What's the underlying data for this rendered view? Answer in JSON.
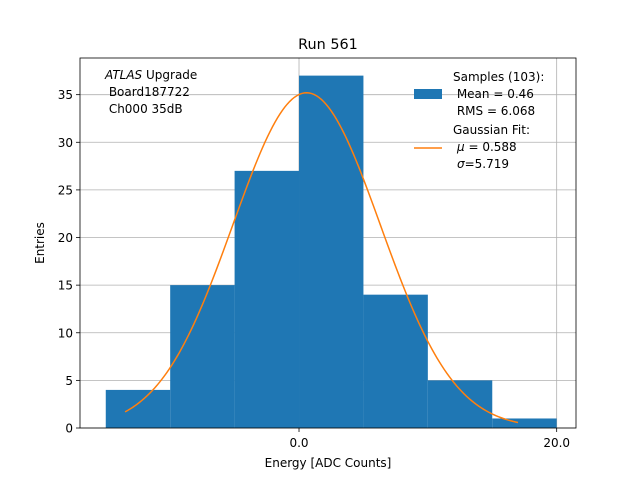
{
  "chart_data": {
    "type": "bar",
    "title": "Run 561",
    "xlabel": "Energy [ADC Counts]",
    "ylabel": "Entries",
    "xlim": [
      -17.0,
      21.5
    ],
    "ylim": [
      0,
      38.85
    ],
    "x_ticks": [
      0.0,
      20.0
    ],
    "x_tick_labels": [
      "0.0",
      "20.0"
    ],
    "y_ticks": [
      0,
      5,
      10,
      15,
      20,
      25,
      30,
      35
    ],
    "y_tick_labels": [
      "0",
      "5",
      "10",
      "15",
      "20",
      "25",
      "30",
      "35"
    ],
    "grid": true,
    "bin_edges": [
      -15,
      -10,
      -5,
      0,
      5,
      10,
      15,
      20
    ],
    "values": [
      4,
      15,
      27,
      37,
      14,
      5,
      1
    ],
    "bar_color": "#1f77b4",
    "fit": {
      "label": "Gaussian Fit",
      "color": "#ff7f0e",
      "amplitude": 35.2,
      "mu": 0.588,
      "sigma": 5.719,
      "x_range": [
        -13.5,
        17.0
      ]
    },
    "annotation": {
      "line1_italic": "ATLAS",
      "line1_rest": " Upgrade",
      "line2": " Board187722",
      "line3": " Ch000 35dB"
    },
    "legend": {
      "position": "top-right",
      "samples_header": "Samples (103):",
      "samples_mean": " Mean = 0.46",
      "samples_rms": " RMS = 6.068",
      "fit_header": "Gaussian Fit:",
      "fit_mu_symbol": "μ",
      "fit_mu_text": " = 0.588",
      "fit_sigma_symbol": "σ",
      "fit_sigma_text": "=5.719"
    }
  }
}
